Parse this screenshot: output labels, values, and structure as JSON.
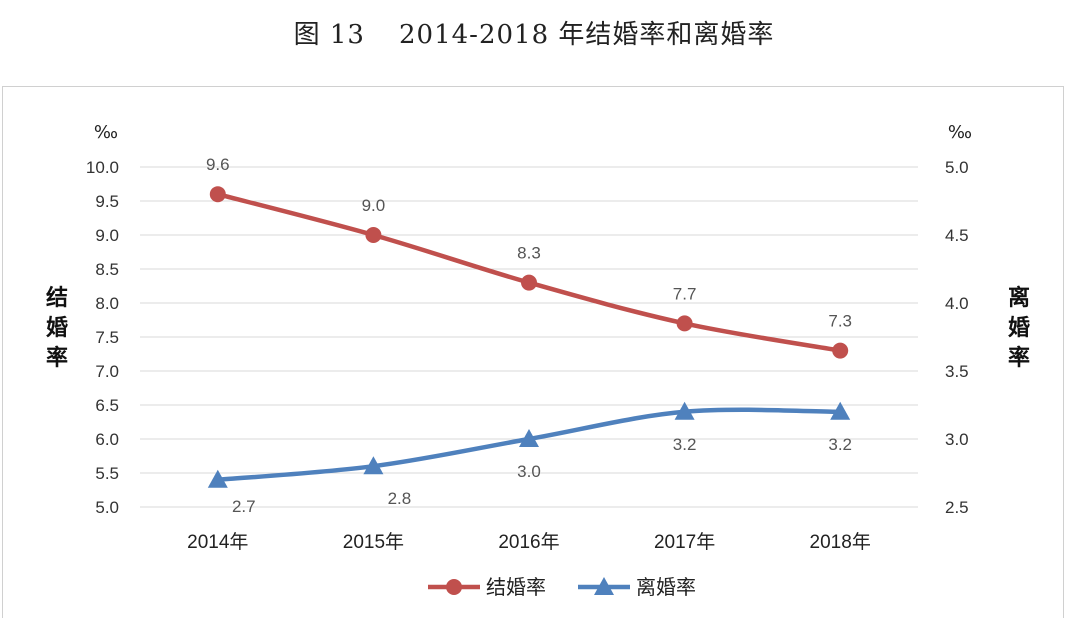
{
  "figure": {
    "number": "图 13",
    "title": "2014-2018 年结婚率和离婚率"
  },
  "chart_data": {
    "type": "line",
    "categories": [
      "2014年",
      "2015年",
      "2016年",
      "2017年",
      "2018年"
    ],
    "series": [
      {
        "name": "结婚率",
        "axis": "left",
        "color": "#c0504d",
        "marker": "circle",
        "values": [
          9.6,
          9.0,
          8.3,
          7.7,
          7.3
        ],
        "labels": [
          "9.6",
          "9.0",
          "8.3",
          "7.7",
          "7.3"
        ]
      },
      {
        "name": "离婚率",
        "axis": "right",
        "color": "#4f81bd",
        "marker": "triangle",
        "values": [
          2.7,
          2.8,
          3.0,
          3.2,
          3.2
        ],
        "labels": [
          "2.7",
          "2.8",
          "3.0",
          "3.2",
          "3.2"
        ]
      }
    ],
    "y_left": {
      "label": "结婚率",
      "unit": "‰",
      "ylim": [
        5.0,
        10.0
      ],
      "ticks": [
        "5.0",
        "5.5",
        "6.0",
        "6.5",
        "7.0",
        "7.5",
        "8.0",
        "8.5",
        "9.0",
        "9.5",
        "10.0"
      ]
    },
    "y_right": {
      "label": "离婚率",
      "unit": "‰",
      "ylim": [
        2.5,
        5.0
      ],
      "ticks": [
        "2.5",
        "3.0",
        "3.5",
        "4.0",
        "4.5",
        "5.0"
      ]
    },
    "grid": true,
    "legend": "bottom",
    "smooth": true
  }
}
